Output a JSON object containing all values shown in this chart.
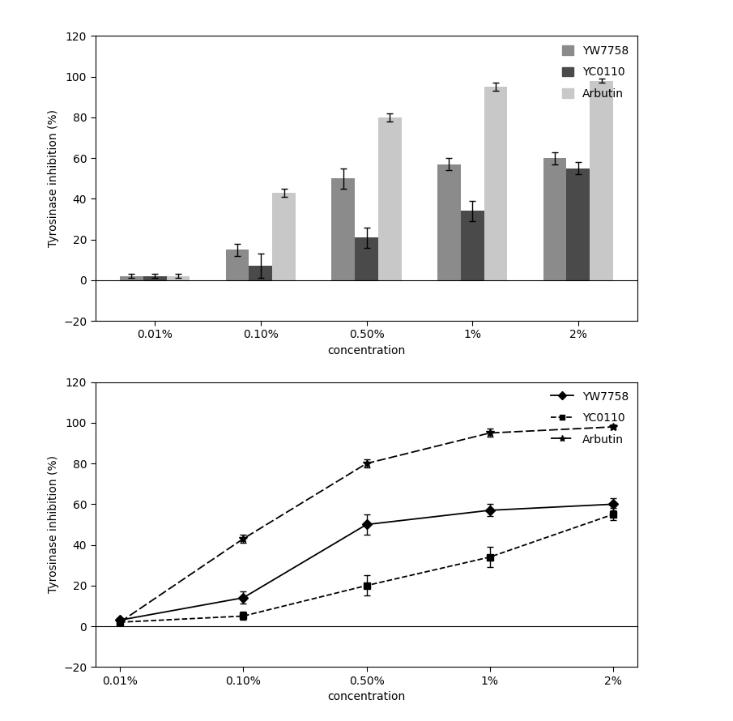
{
  "concentrations": [
    "0.01%",
    "0.10%",
    "0.50%",
    "1%",
    "2%"
  ],
  "bar_yw7758": [
    2,
    15,
    50,
    57,
    60
  ],
  "bar_yc0110": [
    2,
    7,
    21,
    34,
    55
  ],
  "bar_arbutin": [
    2,
    43,
    80,
    95,
    98
  ],
  "err_yw7758": [
    1,
    3,
    5,
    3,
    3
  ],
  "err_yc0110": [
    1,
    6,
    5,
    5,
    3
  ],
  "err_arbutin": [
    1,
    2,
    2,
    2,
    1
  ],
  "line_yw7758": [
    3,
    14,
    50,
    57,
    60
  ],
  "line_yc0110": [
    2,
    5,
    20,
    34,
    55
  ],
  "line_arbutin": [
    2,
    43,
    80,
    95,
    98
  ],
  "lerr_yw7758": [
    1,
    3,
    5,
    3,
    3
  ],
  "lerr_yc0110": [
    1,
    2,
    5,
    5,
    3
  ],
  "lerr_arbutin": [
    1,
    2,
    2,
    2,
    1
  ],
  "color_yw7758": "#8B8B8B",
  "color_yc0110": "#4A4A4A",
  "color_arbutin": "#C8C8C8",
  "ylabel": "Tyrosinase inhibition (%)",
  "xlabel": "concentration",
  "ylim_min": -20,
  "ylim_max": 120,
  "yticks": [
    -20,
    0,
    20,
    40,
    60,
    80,
    100,
    120
  ],
  "legend_labels_bar": [
    "YW7758",
    "YC0110",
    "Arbutin"
  ],
  "legend_labels_line": [
    "YW7758",
    "YC0110",
    "Arbutin"
  ],
  "bar_width": 0.22,
  "fig_width": 9.05,
  "fig_height": 8.9,
  "panel_box_color": "#888888"
}
